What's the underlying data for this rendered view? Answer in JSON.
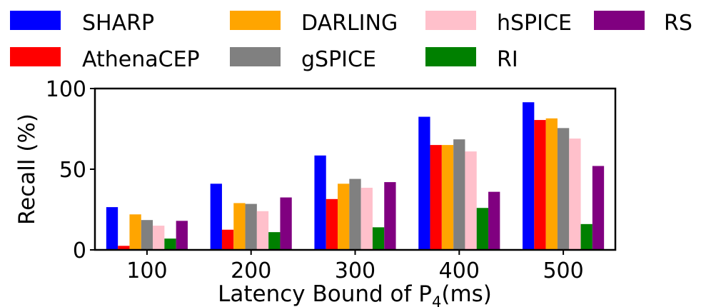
{
  "chart_data": {
    "type": "bar",
    "xlabel_main": "Latency Bound of P",
    "xlabel_sub": "4",
    "xlabel_tail": "(ms)",
    "ylabel": "Recall (%)",
    "categories": [
      "100",
      "200",
      "300",
      "400",
      "500"
    ],
    "ylim": [
      0,
      100
    ],
    "yticks": [
      "0",
      "50",
      "100"
    ],
    "grid": false,
    "legend_position": "top",
    "series": [
      {
        "name": "SHARP",
        "color": "#0000ff",
        "values": [
          26.5,
          41,
          58.5,
          82.5,
          91.5
        ]
      },
      {
        "name": "AthenaCEP",
        "color": "#ff0000",
        "values": [
          2.5,
          12.5,
          31.5,
          65,
          80.5
        ]
      },
      {
        "name": "DARLING",
        "color": "#ffa500",
        "values": [
          22,
          29,
          41,
          65,
          81.5
        ]
      },
      {
        "name": "gSPICE",
        "color": "#808080",
        "values": [
          18.5,
          28.5,
          44,
          68.5,
          75.5
        ]
      },
      {
        "name": "hSPICE",
        "color": "#ffc0cb",
        "values": [
          15,
          24,
          38.5,
          61,
          69
        ]
      },
      {
        "name": "RI",
        "color": "#008000",
        "values": [
          7,
          11,
          14,
          26,
          16
        ]
      },
      {
        "name": "RS",
        "color": "#800080",
        "values": [
          18,
          32.5,
          42,
          36,
          52
        ]
      }
    ]
  }
}
